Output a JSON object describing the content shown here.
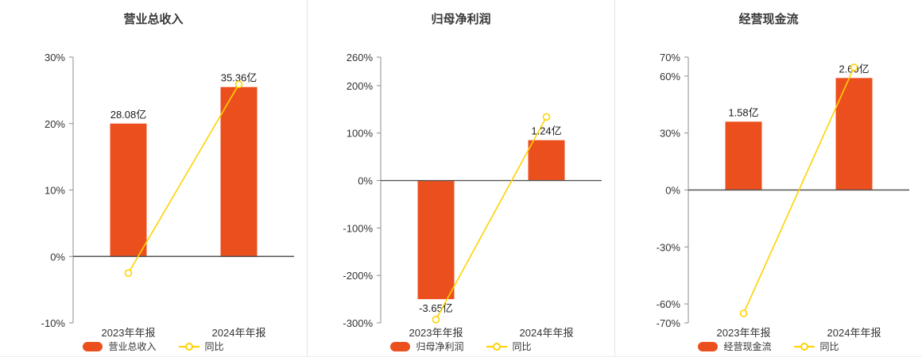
{
  "colors": {
    "bar": "#ec4f1e",
    "line": "#ffd200",
    "marker_fill": "#ffffff",
    "axis": "#8c8c8c",
    "zero_line": "#555555",
    "tick_text": "#333333",
    "value_label": "#1a1a1a",
    "separator": "#e3e3e3",
    "background": "#ffffff"
  },
  "chart_data": [
    {
      "type": "bar",
      "title": "营业总收入",
      "categories": [
        "2023年年报",
        "2024年年报"
      ],
      "bar_series": {
        "name": "营业总收入",
        "values": [
          28.08,
          35.36
        ],
        "unit": "亿",
        "labels": [
          "28.08亿",
          "35.36亿"
        ],
        "plotted_pct": [
          20,
          25.5
        ]
      },
      "line_series": {
        "name": "同比",
        "values_pct": [
          -2.5,
          25.9
        ]
      },
      "ylim": [
        -10,
        30
      ],
      "ytick_values": [
        30,
        20,
        10,
        0,
        -10
      ],
      "yticks": [
        "30%",
        "20%",
        "10%",
        "0%",
        "-10%"
      ],
      "grid": false,
      "legend_position": "bottom",
      "legend": [
        "营业总收入",
        "同比"
      ]
    },
    {
      "type": "bar",
      "title": "归母净利润",
      "categories": [
        "2023年年报",
        "2024年年报"
      ],
      "bar_series": {
        "name": "归母净利润",
        "values": [
          -3.65,
          1.24
        ],
        "unit": "亿",
        "labels": [
          "-3.65亿",
          "1.24亿"
        ],
        "plotted_pct": [
          -250,
          85
        ]
      },
      "line_series": {
        "name": "同比",
        "values_pct": [
          -293,
          134
        ]
      },
      "ylim": [
        -300,
        260
      ],
      "ytick_values": [
        260,
        200,
        100,
        0,
        -100,
        -200,
        -300
      ],
      "yticks": [
        "260%",
        "200%",
        "100%",
        "0%",
        "-100%",
        "-200%",
        "-300%"
      ],
      "grid": false,
      "legend_position": "bottom",
      "legend": [
        "归母净利润",
        "同比"
      ]
    },
    {
      "type": "bar",
      "title": "经营现金流",
      "categories": [
        "2023年年报",
        "2024年年报"
      ],
      "bar_series": {
        "name": "经营现金流",
        "values": [
          1.58,
          2.6
        ],
        "unit": "亿",
        "labels": [
          "1.58亿",
          "2.60亿"
        ],
        "plotted_pct": [
          36,
          59
        ]
      },
      "line_series": {
        "name": "同比",
        "values_pct": [
          -65,
          64.6
        ]
      },
      "ylim": [
        -70,
        70
      ],
      "ytick_values": [
        70,
        60,
        30,
        0,
        -30,
        -60,
        -70
      ],
      "yticks": [
        "70%",
        "60%",
        "30%",
        "0%",
        "-30%",
        "-60%",
        "-70%"
      ],
      "grid": false,
      "legend_position": "bottom",
      "legend": [
        "经营现金流",
        "同比"
      ]
    }
  ]
}
